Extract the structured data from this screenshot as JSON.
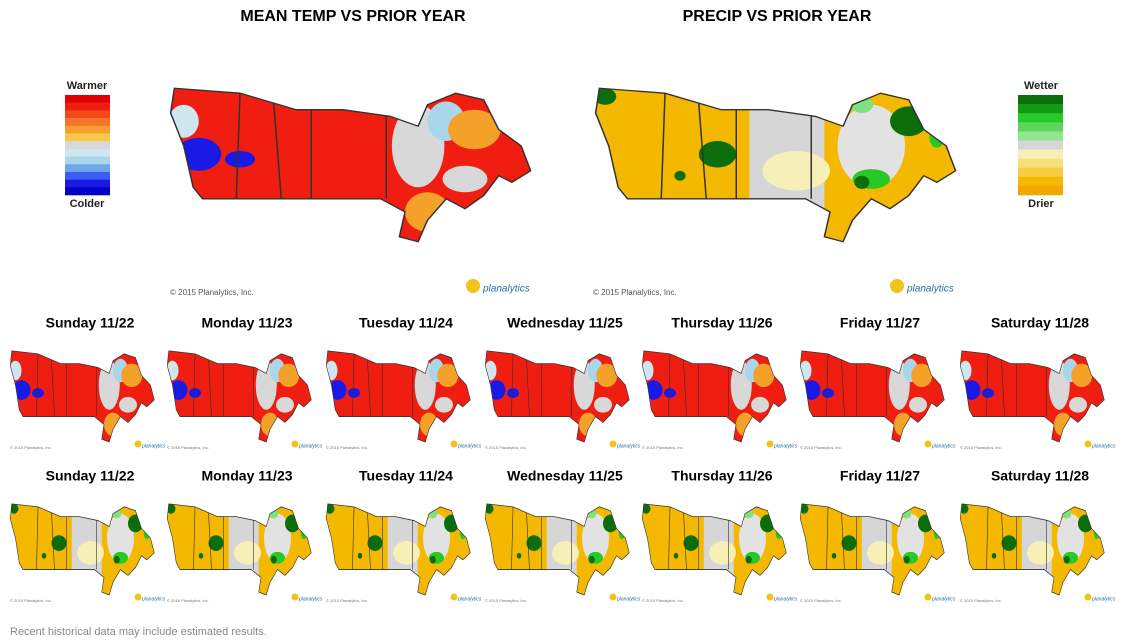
{
  "big_maps": [
    {
      "title": "MEAN TEMP VS PRIOR YEAR",
      "legend_top": "Warmer",
      "legend_bottom": "Colder"
    },
    {
      "title": "PRECIP VS PRIOR YEAR",
      "legend_top": "Wetter",
      "legend_bottom": "Drier"
    }
  ],
  "copyright": "© 2015 Planalytics, Inc.",
  "logo": "planalytics",
  "temp_days": [
    "Sunday 11/22",
    "Monday 11/23",
    "Tuesday 11/24",
    "Wednesday 11/25",
    "Thursday 11/26",
    "Friday 11/27",
    "Saturday 11/28"
  ],
  "precip_days": [
    "Sunday 11/22",
    "Monday 11/23",
    "Tuesday 11/24",
    "Wednesday 11/25",
    "Thursday 11/26",
    "Friday 11/27",
    "Saturday 11/28"
  ],
  "footnote": "Recent historical data may include estimated results."
}
